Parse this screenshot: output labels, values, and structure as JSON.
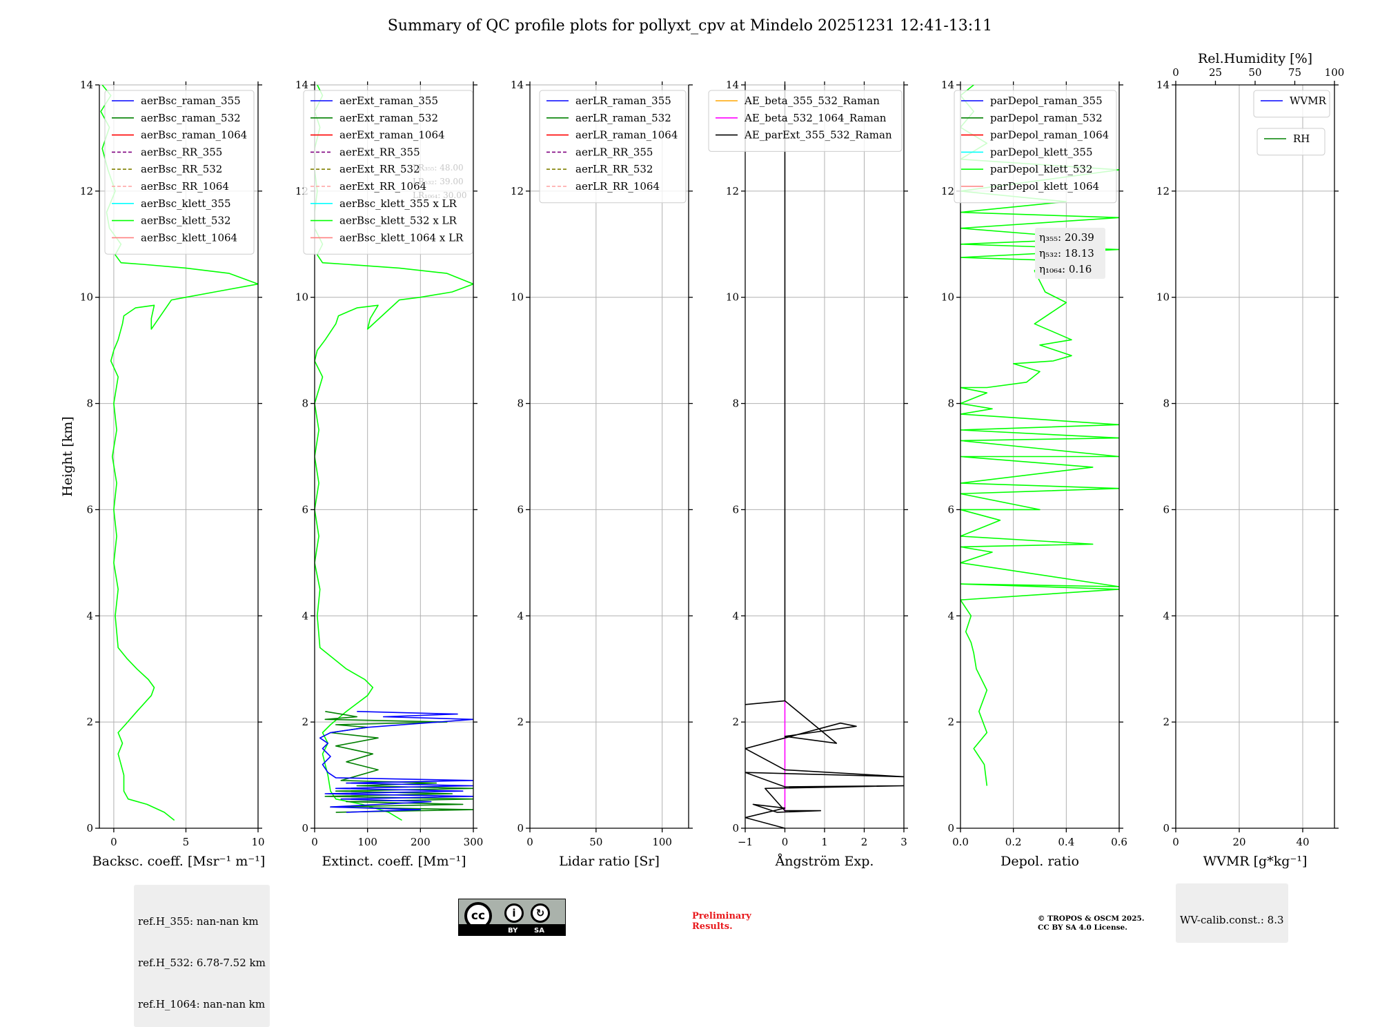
{
  "figure_title": "Summary of QC profile plots for pollyxt_cpv at Mindelo 20251231 12:41-13:11",
  "colors": {
    "green": "#00ff00",
    "darkgreen": "#008000",
    "blue": "#0000ff",
    "grid": "#b0b0b0"
  },
  "ref_info": [
    "ref.H_355: nan-nan km",
    "ref.H_532: 6.78-7.52 km",
    "ref.H_1064: nan-nan km"
  ],
  "wv_calib": "WV-calib.const.: 8.3",
  "prelim": [
    "Preliminary",
    "Results."
  ],
  "copyright": [
    "© TROPOS & OSCM 2025.",
    "CC BY SA 4.0 License."
  ],
  "cc_badge": {
    "by": "BY",
    "sa": "SA",
    "cc": "cc"
  },
  "chart_data": [
    {
      "type": "line",
      "xlabel": "Backsc. coeff. [Msr⁻¹ m⁻¹]",
      "ylabel": "Height [km]",
      "xlim": [
        -1,
        10
      ],
      "ylim": [
        0,
        14
      ],
      "xticks": [
        0,
        5,
        10
      ],
      "xtick_labels": [
        "0",
        "5",
        "10"
      ],
      "yticks": [
        0,
        2,
        4,
        6,
        8,
        10,
        12,
        14
      ],
      "ytick_labels": [
        "0",
        "2",
        "4",
        "6",
        "8",
        "10",
        "12",
        "14"
      ],
      "legend": [
        {
          "label": "aerBsc_raman_355",
          "color": "#0000ff",
          "dash": false
        },
        {
          "label": "aerBsc_raman_532",
          "color": "#008000",
          "dash": false
        },
        {
          "label": "aerBsc_raman_1064",
          "color": "#ff0000",
          "dash": false
        },
        {
          "label": "aerBsc_RR_355",
          "color": "#800080",
          "dash": true
        },
        {
          "label": "aerBsc_RR_532",
          "color": "#808000",
          "dash": true
        },
        {
          "label": "aerBsc_RR_1064",
          "color": "#ffa0a0",
          "dash": true
        },
        {
          "label": "aerBsc_klett_355",
          "color": "#00ffff",
          "dash": false
        },
        {
          "label": "aerBsc_klett_532",
          "color": "#00ff00",
          "dash": false
        },
        {
          "label": "aerBsc_klett_1064",
          "color": "#ff8080",
          "dash": false
        }
      ],
      "series": [
        {
          "name": "aerBsc_klett_532",
          "color": "#00ff00",
          "x": [
            4.2,
            3.5,
            2.3,
            1.0,
            0.7,
            0.7,
            0.5,
            0.3,
            0.6,
            0.3,
            0.8,
            1.6,
            2.6,
            2.8,
            2.4,
            1.6,
            0.9,
            0.3,
            0.1,
            0.3,
            0.0,
            0.2,
            0.0,
            0.2,
            -0.1,
            0.2,
            0.0,
            0.3,
            -0.2,
            0.0,
            0.3,
            0.6,
            0.7,
            1.5,
            2.8,
            2.6,
            2.6,
            4.0,
            5.0,
            7.0,
            10.0,
            8.0,
            5.0,
            2.0,
            0.5,
            0.1,
            0.5,
            -0.3,
            -0.5,
            0.1,
            -0.4,
            -0.8,
            -0.3,
            -0.9,
            -0.2,
            -0.8
          ],
          "y": [
            0.15,
            0.3,
            0.45,
            0.55,
            0.7,
            1.0,
            1.2,
            1.4,
            1.6,
            1.8,
            1.95,
            2.2,
            2.5,
            2.65,
            2.8,
            3.0,
            3.2,
            3.4,
            4.0,
            4.5,
            5.0,
            5.5,
            6.0,
            6.5,
            7.0,
            7.5,
            8.0,
            8.5,
            8.8,
            9.0,
            9.2,
            9.5,
            9.65,
            9.8,
            9.85,
            9.6,
            9.4,
            9.95,
            10.0,
            10.1,
            10.25,
            10.45,
            10.55,
            10.62,
            10.65,
            10.8,
            11.0,
            11.3,
            11.6,
            12.0,
            12.4,
            12.8,
            13.2,
            13.5,
            13.8,
            14.0
          ]
        }
      ]
    },
    {
      "type": "line",
      "xlabel": "Extinct. coeff. [Mm⁻¹]",
      "xlim": [
        0,
        300
      ],
      "ylim": [
        0,
        14
      ],
      "xticks": [
        0,
        100,
        200,
        300
      ],
      "xtick_labels": [
        "0",
        "100",
        "200",
        "300"
      ],
      "yticks": [
        0,
        2,
        4,
        6,
        8,
        10,
        12,
        14
      ],
      "ytick_labels": [
        "0",
        "2",
        "4",
        "6",
        "8",
        "10",
        "12",
        "14"
      ],
      "legend": [
        {
          "label": "aerExt_raman_355",
          "color": "#0000ff",
          "dash": false
        },
        {
          "label": "aerExt_raman_532",
          "color": "#008000",
          "dash": false
        },
        {
          "label": "aerExt_raman_1064",
          "color": "#ff0000",
          "dash": false
        },
        {
          "label": "aerExt_RR_355",
          "color": "#800080",
          "dash": true
        },
        {
          "label": "aerExt_RR_532",
          "color": "#808000",
          "dash": true
        },
        {
          "label": "aerExt_RR_1064",
          "color": "#ffa0a0",
          "dash": true
        },
        {
          "label": "aerBsc_klett_355 x LR",
          "color": "#00ffff",
          "dash": false
        },
        {
          "label": "aerBsc_klett_532 x LR",
          "color": "#00ff00",
          "dash": false
        },
        {
          "label": "aerBsc_klett_1064 x LR",
          "color": "#ff8080",
          "dash": false
        }
      ],
      "annotations": [
        "LR₃₅₅: 48.00",
        "LR₅₃₂: 39.00",
        "LR₁₀₆₄: 30.00"
      ],
      "series": [
        {
          "name": "aerBsc_klett_532 x LR",
          "color": "#00ff00",
          "x": [
            165,
            140,
            90,
            40,
            30,
            25,
            20,
            15,
            25,
            15,
            30,
            60,
            100,
            110,
            95,
            60,
            35,
            10,
            5,
            10,
            0,
            8,
            0,
            8,
            0,
            8,
            0,
            15,
            0,
            5,
            20,
            40,
            45,
            80,
            120,
            105,
            100,
            160,
            200,
            260,
            300,
            250,
            160,
            60,
            15,
            5,
            15,
            0,
            0,
            5,
            0,
            0,
            10,
            0,
            15,
            5
          ],
          "y": [
            0.15,
            0.3,
            0.45,
            0.55,
            0.7,
            1.0,
            1.2,
            1.4,
            1.6,
            1.8,
            1.95,
            2.2,
            2.5,
            2.65,
            2.8,
            3.0,
            3.2,
            3.4,
            4.0,
            4.5,
            5.0,
            5.5,
            6.0,
            6.5,
            7.0,
            7.5,
            8.0,
            8.5,
            8.8,
            9.0,
            9.2,
            9.5,
            9.65,
            9.8,
            9.85,
            9.6,
            9.4,
            9.95,
            10.0,
            10.1,
            10.25,
            10.45,
            10.55,
            10.62,
            10.65,
            10.8,
            11.0,
            11.3,
            11.6,
            12.0,
            12.4,
            12.8,
            13.2,
            13.5,
            13.8,
            14.0
          ]
        },
        {
          "name": "aerExt_raman_532",
          "color": "#008000",
          "x": [
            40,
            300,
            30,
            280,
            60,
            300,
            20,
            260,
            40,
            300,
            80,
            230,
            50,
            120,
            60,
            110,
            40,
            120,
            30,
            100,
            40,
            250,
            20,
            80,
            20
          ],
          "y": [
            0.3,
            0.35,
            0.4,
            0.45,
            0.5,
            0.55,
            0.6,
            0.65,
            0.7,
            0.75,
            0.8,
            0.85,
            0.9,
            1.1,
            1.25,
            1.4,
            1.55,
            1.7,
            1.8,
            1.9,
            1.95,
            2.0,
            2.05,
            2.1,
            2.2
          ]
        },
        {
          "name": "aerExt_raman_355",
          "color": "#0000ff",
          "x": [
            60,
            200,
            30,
            220,
            50,
            300,
            20,
            280,
            40,
            300,
            60,
            300,
            40,
            25,
            15,
            30,
            15,
            25,
            10,
            30,
            100,
            300,
            130,
            270,
            80
          ],
          "y": [
            0.3,
            0.35,
            0.4,
            0.5,
            0.55,
            0.6,
            0.65,
            0.7,
            0.75,
            0.8,
            0.85,
            0.9,
            0.95,
            1.05,
            1.2,
            1.35,
            1.5,
            1.6,
            1.7,
            1.8,
            1.9,
            2.05,
            2.1,
            2.15,
            2.2
          ]
        }
      ]
    },
    {
      "type": "line",
      "xlabel": "Lidar ratio [Sr]",
      "xlim": [
        0,
        120
      ],
      "ylim": [
        0,
        14
      ],
      "xticks": [
        0,
        50,
        100
      ],
      "xtick_labels": [
        "0",
        "50",
        "100"
      ],
      "yticks": [
        0,
        2,
        4,
        6,
        8,
        10,
        12,
        14
      ],
      "ytick_labels": [
        "0",
        "2",
        "4",
        "6",
        "8",
        "10",
        "12",
        "14"
      ],
      "legend": [
        {
          "label": "aerLR_raman_355",
          "color": "#0000ff",
          "dash": false
        },
        {
          "label": "aerLR_raman_532",
          "color": "#008000",
          "dash": false
        },
        {
          "label": "aerLR_raman_1064",
          "color": "#ff0000",
          "dash": false
        },
        {
          "label": "aerLR_RR_355",
          "color": "#800080",
          "dash": true
        },
        {
          "label": "aerLR_RR_532",
          "color": "#808000",
          "dash": true
        },
        {
          "label": "aerLR_RR_1064",
          "color": "#ffa0a0",
          "dash": true
        }
      ],
      "series": []
    },
    {
      "type": "line",
      "xlabel": "Ångström Exp.",
      "xlim": [
        -1,
        3
      ],
      "ylim": [
        0,
        14
      ],
      "xticks": [
        -1,
        0,
        1,
        2,
        3
      ],
      "xtick_labels": [
        "−1",
        "0",
        "1",
        "2",
        "3"
      ],
      "yticks": [
        0,
        2,
        4,
        6,
        8,
        10,
        12,
        14
      ],
      "ytick_labels": [
        "0",
        "2",
        "4",
        "6",
        "8",
        "10",
        "12",
        "14"
      ],
      "legend": [
        {
          "label": "AE_beta_355_532_Raman",
          "color": "#ffa500",
          "dash": false
        },
        {
          "label": "AE_beta_532_1064_Raman",
          "color": "#ff00ff",
          "dash": false
        },
        {
          "label": "AE_parExt_355_532_Raman",
          "color": "#000000",
          "dash": false
        }
      ],
      "series": [
        {
          "name": "AE_beta_532_1064_Raman",
          "color": "#ff00ff",
          "x": [
            0,
            0
          ],
          "y": [
            0.3,
            2.4
          ]
        },
        {
          "name": "AE_parExt_355_532_Raman",
          "color": "#000000",
          "x": [
            0,
            0,
            0,
            -1,
            0,
            1.3,
            0,
            1.8,
            1.4,
            -1,
            0,
            3.0,
            -1,
            0,
            3.0,
            -0.5,
            0,
            0.9,
            -0.2,
            -0.8,
            0,
            -1,
            0
          ],
          "y": [
            14,
            13.5,
            2.4,
            2.33,
            2.4,
            1.6,
            1.73,
            1.92,
            1.98,
            1.5,
            1.1,
            0.97,
            1.05,
            0.78,
            0.8,
            0.75,
            0.33,
            0.33,
            0.3,
            0.45,
            0.38,
            0.2,
            0
          ]
        }
      ]
    },
    {
      "type": "line",
      "xlabel": "Depol. ratio",
      "xlim": [
        0,
        0.6
      ],
      "ylim": [
        0,
        14
      ],
      "xticks": [
        0,
        0.2,
        0.4,
        0.6
      ],
      "xtick_labels": [
        "0.0",
        "0.2",
        "0.4",
        "0.6"
      ],
      "yticks": [
        0,
        2,
        4,
        6,
        8,
        10,
        12,
        14
      ],
      "ytick_labels": [
        "0",
        "2",
        "4",
        "6",
        "8",
        "10",
        "12",
        "14"
      ],
      "legend": [
        {
          "label": "parDepol_raman_355",
          "color": "#0000ff",
          "dash": false
        },
        {
          "label": "parDepol_raman_532",
          "color": "#008000",
          "dash": false
        },
        {
          "label": "parDepol_raman_1064",
          "color": "#ff0000",
          "dash": false
        },
        {
          "label": "parDepol_klett_355",
          "color": "#00ffff",
          "dash": false
        },
        {
          "label": "parDepol_klett_532",
          "color": "#00ff00",
          "dash": false
        },
        {
          "label": "parDepol_klett_1064",
          "color": "#ff8080",
          "dash": false
        }
      ],
      "annotations": [
        "η₃₅₅: 20.39",
        "η₅₃₂: 18.13",
        "η₁₀₆₄: 0.16"
      ],
      "series": [
        {
          "name": "parDepol_klett_532",
          "color": "#00ff00",
          "x": [
            0.1,
            0.09,
            0.05,
            0.1,
            0.07,
            0.1,
            0.06,
            0.05,
            0.04,
            0.02,
            0.04,
            0.0,
            0.6,
            0.0,
            0.6,
            0.0,
            0.12,
            0.0,
            0.5,
            0.0,
            0.15,
            0.0,
            0.3,
            0.0,
            0.6,
            0.0,
            0.5,
            0.0,
            0.6,
            0.0,
            0.6,
            0.0,
            0.6,
            0.0,
            0.12,
            0.0,
            0.1,
            0.0,
            0.1,
            0.25,
            0.3,
            0.2,
            0.35,
            0.42,
            0.3,
            0.42,
            0.35,
            0.28,
            0.4,
            0.32,
            0.3,
            0.28,
            0.3,
            0.32,
            0.0,
            0.6,
            0.0,
            0.5,
            0.0,
            0.6,
            0.0,
            0.4,
            0.0,
            0.6,
            0.0,
            0.1,
            0.0,
            0.05,
            0.0,
            0.05
          ],
          "y": [
            0.8,
            1.2,
            1.5,
            1.8,
            2.2,
            2.6,
            3.0,
            3.3,
            3.5,
            3.7,
            4.0,
            4.3,
            4.5,
            4.6,
            4.55,
            5.0,
            5.2,
            5.3,
            5.35,
            5.5,
            5.8,
            6.0,
            6.0,
            6.3,
            6.4,
            6.5,
            6.8,
            7.0,
            7.0,
            7.3,
            7.35,
            7.5,
            7.6,
            7.8,
            7.9,
            8.0,
            8.2,
            8.3,
            8.3,
            8.4,
            8.6,
            8.75,
            8.8,
            8.9,
            9.1,
            9.2,
            9.35,
            9.5,
            9.9,
            10.1,
            10.3,
            10.5,
            10.6,
            10.7,
            10.75,
            10.9,
            11.0,
            11.1,
            11.3,
            11.5,
            11.6,
            11.8,
            12.0,
            12.4,
            12.6,
            12.9,
            13.2,
            13.5,
            13.8,
            14.0
          ]
        }
      ]
    },
    {
      "type": "line",
      "xlabel": "WVMR [g*kg⁻¹]",
      "top_xlabel": "Rel.Humidity [%]",
      "xlim": [
        0,
        50
      ],
      "ylim": [
        0,
        14
      ],
      "xticks": [
        0,
        20,
        40
      ],
      "xtick_labels": [
        "0",
        "20",
        "40"
      ],
      "top_xticks": [
        0,
        25,
        50,
        75,
        100
      ],
      "top_xtick_labels": [
        "0",
        "25",
        "50",
        "75",
        "100"
      ],
      "yticks": [
        0,
        2,
        4,
        6,
        8,
        10,
        12,
        14
      ],
      "ytick_labels": [
        "0",
        "2",
        "4",
        "6",
        "8",
        "10",
        "12",
        "14"
      ],
      "legend": [
        {
          "label": "WVMR",
          "color": "#0000ff",
          "dash": false
        }
      ],
      "legend2": [
        {
          "label": "RH",
          "color": "#008000",
          "dash": false
        }
      ],
      "series": []
    }
  ]
}
